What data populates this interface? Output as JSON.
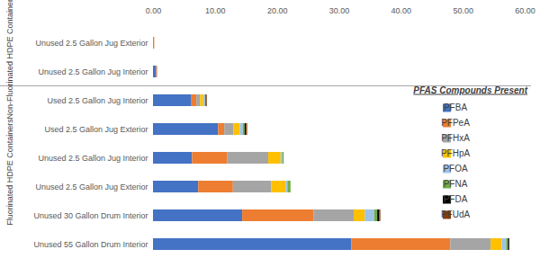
{
  "chart_data": {
    "type": "bar",
    "orientation": "horizontal",
    "stacked": true,
    "grid": false,
    "legend": "right",
    "legend_title": "PFAS Compounds Present",
    "data_labels": false,
    "categories": [
      "Unused 2.5 Gallon Jug Exterior",
      "Unused 2.5 Gallon Jug Interior",
      "Used 2.5 Gallon Jug Interior",
      "Used 2.5 Gallon Jug Exterior",
      "Unused 2.5 Gallon Jug Interior",
      "Unused 2.5 Gallon Jug Exterior",
      "Unused 30 Gallon Drum Interior",
      "Unused 55 Gallon Drum Interior"
    ],
    "groups": [
      {
        "name": "Non-Fluorinated HDPE Containers",
        "categories": [
          "Unused 2.5 Gallon Jug Exterior",
          "Unused 2.5 Gallon Jug Interior"
        ]
      },
      {
        "name": "Fluorinated HDPE Containers",
        "categories": [
          "Used 2.5 Gallon Jug Interior",
          "Used 2.5 Gallon Jug Exterior",
          "Unused 2.5 Gallon Jug Interior",
          "Unused 2.5 Gallon Jug Exterior",
          "Unused 30 Gallon Drum Interior",
          "Unused 55 Gallon Drum Interior"
        ]
      }
    ],
    "series": [
      {
        "name": "PFBA",
        "color": "#4472c4",
        "values": [
          0,
          0.5,
          6.2,
          10.5,
          6.3,
          7.3,
          14.4,
          32.0
        ]
      },
      {
        "name": "PFPeA",
        "color": "#ed7d31",
        "values": [
          0.2,
          0.1,
          0.8,
          1.0,
          5.7,
          5.6,
          11.5,
          16.0
        ]
      },
      {
        "name": "PFHxA",
        "color": "#a5a5a5",
        "values": [
          0,
          0.1,
          0.6,
          1.5,
          6.6,
          6.2,
          6.5,
          6.5
        ]
      },
      {
        "name": "PFHpA",
        "color": "#ffc000",
        "values": [
          0,
          0,
          0.5,
          1.0,
          2.0,
          2.3,
          1.8,
          1.8
        ]
      },
      {
        "name": "PFOA",
        "color": "#9dc3e6",
        "values": [
          0,
          0,
          0.3,
          0.5,
          0.3,
          0.3,
          1.5,
          0.7
        ]
      },
      {
        "name": "PFNA",
        "color": "#70ad47",
        "values": [
          0,
          0,
          0.1,
          0.3,
          0.2,
          0.5,
          0.5,
          0.3
        ]
      },
      {
        "name": "PFDA",
        "color": "#000000",
        "values": [
          0,
          0,
          0.1,
          0.2,
          0,
          0,
          0.3,
          0.2
        ]
      },
      {
        "name": "PFUdA",
        "color": "#843c0c",
        "values": [
          0,
          0,
          0.1,
          0.2,
          0,
          0,
          0.2,
          0
        ]
      }
    ],
    "xlim": [
      0,
      60
    ],
    "xticks": [
      {
        "value": 0,
        "label": "0.00"
      },
      {
        "value": 10,
        "label": "10.00"
      },
      {
        "value": 20,
        "label": "20.00"
      },
      {
        "value": 30,
        "label": "30.00"
      },
      {
        "value": 40,
        "label": "40.00"
      },
      {
        "value": 50,
        "label": "50.00"
      },
      {
        "value": 60,
        "label": "60.00"
      }
    ]
  }
}
